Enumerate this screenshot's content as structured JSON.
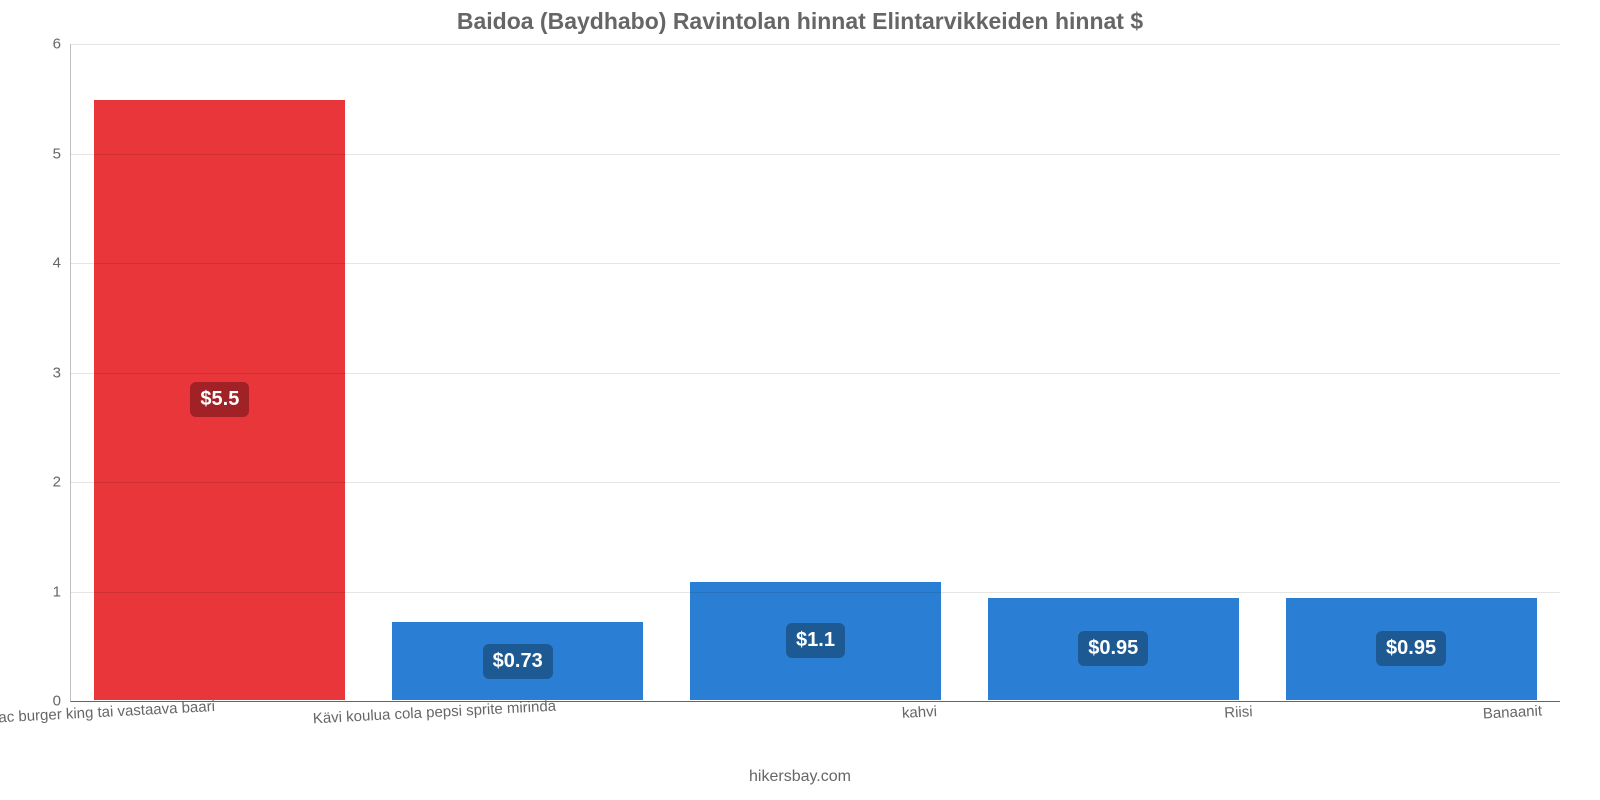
{
  "chart": {
    "type": "bar",
    "title": "Baidoa (Baydhabo) Ravintolan hinnat Elintarvikkeiden hinnat $",
    "title_color": "#666666",
    "title_fontsize": 23,
    "title_weight": 700,
    "source_text": "hikersbay.com",
    "source_color": "#666666",
    "background_color": "#ffffff",
    "ymin": 0,
    "ymax": 6,
    "ytick_step": 1,
    "ytick_labels": [
      "0",
      "1",
      "2",
      "3",
      "4",
      "5",
      "6"
    ],
    "ytick_color": "#666666",
    "grid_color": "rgba(0,0,0,0.10)",
    "axis_color": "rgba(0,0,0,0.25)",
    "bar_width_pct": 85,
    "bar_border_color": "#ffffff",
    "value_label_fontsize": 20,
    "value_label_color": "#ffffff",
    "xlabel_fontsize": 15,
    "xlabel_rotate_deg": -3,
    "categories": [
      "mac burger king tai vastaava baari",
      "Kävi koulua cola pepsi sprite mirinda",
      "kahvi",
      "Riisi",
      "Banaanit"
    ],
    "values": [
      5.5,
      0.73,
      1.1,
      0.95,
      0.95
    ],
    "value_labels": [
      "$5.5",
      "$0.73",
      "$1.1",
      "$0.95",
      "$0.95"
    ],
    "bar_colors": [
      "#e8363a",
      "#2a7fd4",
      "#2a7fd4",
      "#2a7fd4",
      "#2a7fd4"
    ],
    "badge_colors": [
      "#a12226",
      "#1d5a94",
      "#1d5a94",
      "#1d5a94",
      "#1d5a94"
    ],
    "xlabel_offsets_pct": [
      -40,
      -28,
      35,
      42,
      34
    ]
  }
}
